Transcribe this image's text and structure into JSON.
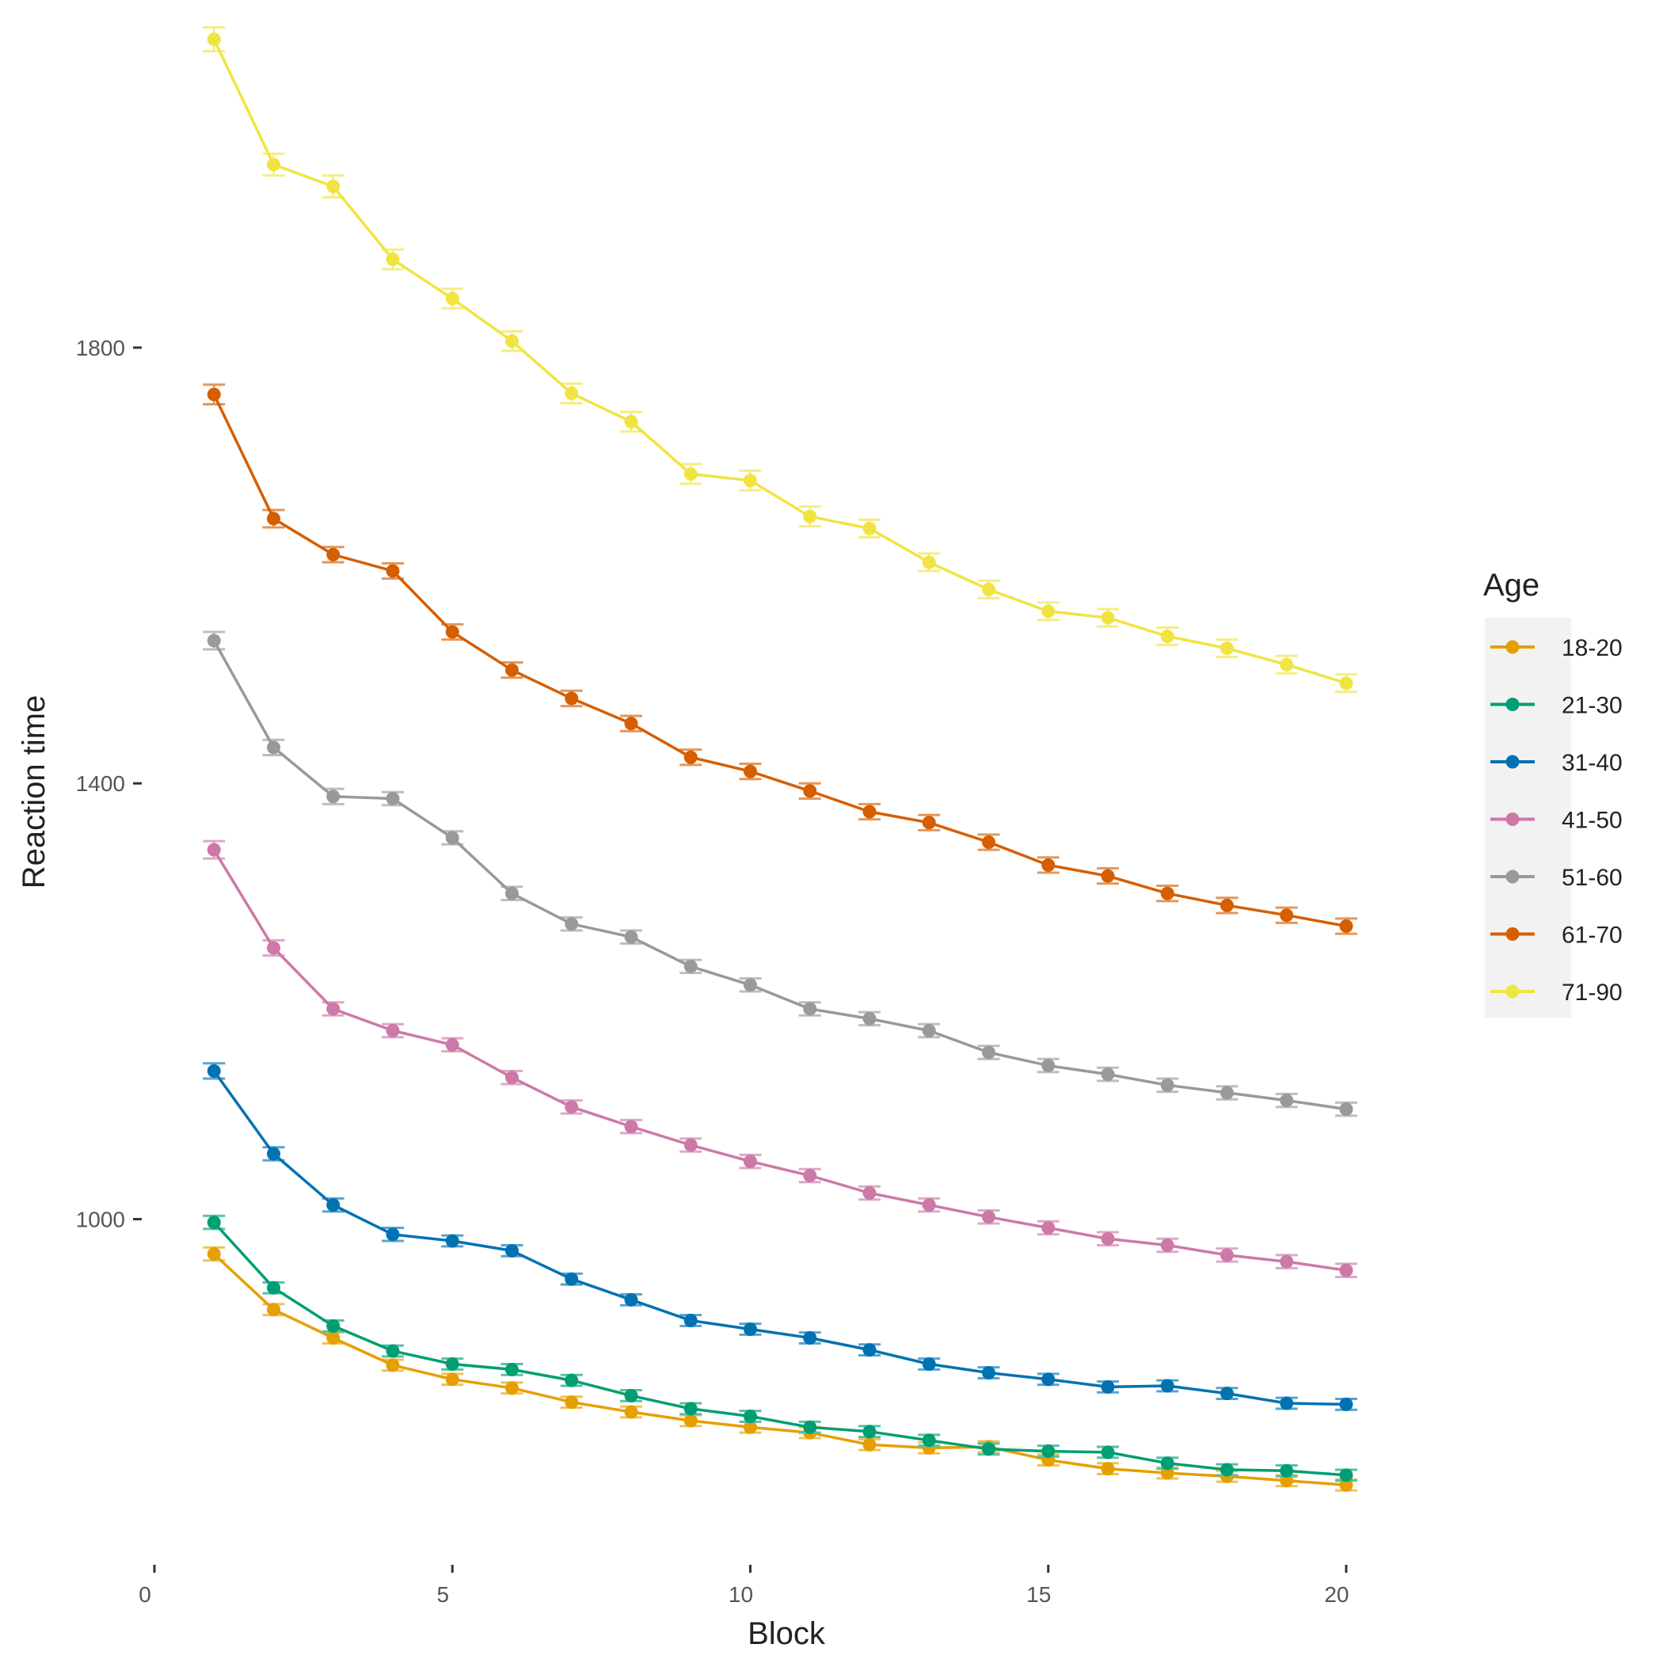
{
  "chart_data": {
    "type": "line",
    "title": "",
    "xlabel": "Block",
    "ylabel": "Reaction time",
    "x": [
      1,
      2,
      3,
      4,
      5,
      6,
      7,
      8,
      9,
      10,
      11,
      12,
      13,
      14,
      15,
      16,
      17,
      18,
      19,
      20
    ],
    "xlim": [
      0,
      20.2
    ],
    "ylim": [
      690,
      2090
    ],
    "x_ticks": [
      0,
      5,
      10,
      15,
      20
    ],
    "x_tick_labels": [
      "0",
      "5",
      "10",
      "15",
      "20"
    ],
    "y_ticks": [
      1000,
      1400,
      1800
    ],
    "y_tick_labels": [
      "1000",
      "1400",
      "1800"
    ],
    "grid": false,
    "error_bars": true,
    "legend": {
      "title": "Age",
      "position": "right"
    },
    "series": [
      {
        "name": "18-20",
        "color": "#E69F00",
        "values": [
          968,
          917,
          891,
          866,
          853,
          845,
          832,
          823,
          815,
          809,
          804,
          793,
          790,
          791,
          779,
          771,
          767,
          764,
          760,
          756
        ],
        "error": [
          6,
          5,
          5,
          5,
          5,
          5,
          5,
          5,
          5,
          5,
          5,
          5,
          5,
          5,
          5,
          5,
          5,
          5,
          5,
          5
        ]
      },
      {
        "name": "21-30",
        "color": "#009E73",
        "values": [
          997,
          937,
          902,
          879,
          867,
          862,
          852,
          838,
          826,
          819,
          809,
          805,
          797,
          789,
          787,
          786,
          776,
          770,
          769,
          765
        ],
        "error": [
          6,
          5,
          5,
          5,
          5,
          5,
          5,
          5,
          5,
          5,
          5,
          5,
          5,
          5,
          5,
          5,
          5,
          5,
          5,
          5
        ]
      },
      {
        "name": "31-40",
        "color": "#0072B2",
        "values": [
          1136,
          1060,
          1013,
          986,
          980,
          971,
          945,
          926,
          907,
          899,
          891,
          880,
          867,
          859,
          853,
          846,
          847,
          840,
          831,
          830
        ],
        "error": [
          7,
          6,
          6,
          6,
          5,
          5,
          5,
          5,
          5,
          5,
          5,
          5,
          5,
          5,
          5,
          5,
          5,
          5,
          5,
          5
        ]
      },
      {
        "name": "41-50",
        "color": "#CC79A7",
        "values": [
          1339,
          1249,
          1193,
          1173,
          1160,
          1130,
          1103,
          1085,
          1068,
          1053,
          1040,
          1024,
          1013,
          1002,
          992,
          982,
          976,
          967,
          961,
          953
        ],
        "error": [
          8,
          7,
          6,
          6,
          6,
          6,
          6,
          6,
          6,
          6,
          6,
          6,
          6,
          6,
          6,
          6,
          6,
          6,
          6,
          6
        ]
      },
      {
        "name": "51-60",
        "color": "#999999",
        "values": [
          1531,
          1433,
          1388,
          1386,
          1350,
          1299,
          1271,
          1259,
          1232,
          1215,
          1193,
          1184,
          1173,
          1153,
          1141,
          1133,
          1123,
          1116,
          1109,
          1101
        ],
        "error": [
          8,
          7,
          7,
          6,
          6,
          6,
          6,
          6,
          6,
          6,
          6,
          6,
          6,
          6,
          6,
          6,
          6,
          6,
          6,
          6
        ]
      },
      {
        "name": "61-70",
        "color": "#D55E00",
        "values": [
          1757,
          1643,
          1610,
          1595,
          1539,
          1504,
          1478,
          1455,
          1424,
          1411,
          1393,
          1374,
          1364,
          1346,
          1325,
          1315,
          1299,
          1288,
          1279,
          1269
        ],
        "error": [
          9,
          8,
          7,
          7,
          7,
          7,
          7,
          7,
          7,
          7,
          7,
          7,
          7,
          7,
          7,
          7,
          7,
          7,
          7,
          7
        ]
      },
      {
        "name": "71-90",
        "color": "#F0E442",
        "values": [
          2083,
          1968,
          1948,
          1881,
          1845,
          1806,
          1758,
          1732,
          1684,
          1678,
          1645,
          1634,
          1603,
          1578,
          1558,
          1552,
          1535,
          1524,
          1509,
          1492
        ],
        "error": [
          11,
          10,
          10,
          9,
          9,
          9,
          9,
          9,
          9,
          9,
          9,
          8,
          8,
          8,
          8,
          8,
          8,
          8,
          8,
          8
        ]
      }
    ]
  }
}
